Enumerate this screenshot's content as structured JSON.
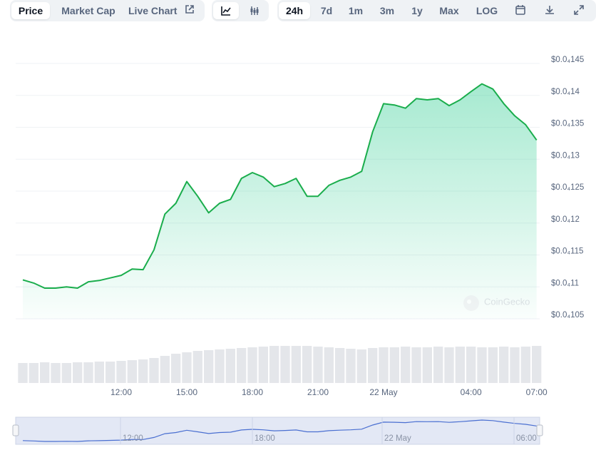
{
  "toolbar": {
    "tabs": [
      "Price",
      "Market Cap",
      "Live Chart"
    ],
    "ranges": [
      "24h",
      "7d",
      "1m",
      "3m",
      "1y",
      "Max",
      "LOG"
    ]
  },
  "chart_data": {
    "type": "line",
    "categories": [
      null,
      null,
      null,
      null,
      null,
      null,
      null,
      null,
      null,
      "12:00",
      null,
      null,
      null,
      null,
      null,
      "15:00",
      null,
      null,
      null,
      null,
      null,
      "18:00",
      null,
      null,
      null,
      null,
      null,
      "21:00",
      null,
      null,
      null,
      null,
      null,
      "22 May",
      null,
      null,
      null,
      null,
      null,
      null,
      null,
      "04:00",
      null,
      null,
      null,
      null,
      null,
      "07:00"
    ],
    "values": [
      1.111e-05,
      1.106e-05,
      1.098e-05,
      1.098e-05,
      1.1e-05,
      1.098e-05,
      1.108e-05,
      1.11e-05,
      1.114e-05,
      1.118e-05,
      1.128e-05,
      1.127e-05,
      1.158e-05,
      1.214e-05,
      1.231e-05,
      1.265e-05,
      1.242e-05,
      1.216e-05,
      1.231e-05,
      1.237e-05,
      1.27e-05,
      1.279e-05,
      1.272e-05,
      1.257e-05,
      1.262e-05,
      1.27e-05,
      1.242e-05,
      1.242e-05,
      1.259e-05,
      1.267e-05,
      1.272e-05,
      1.281e-05,
      1.343e-05,
      1.387e-05,
      1.385e-05,
      1.38e-05,
      1.395e-05,
      1.393e-05,
      1.395e-05,
      1.384e-05,
      1.393e-05,
      1.406e-05,
      1.418e-05,
      1.41e-05,
      1.387e-05,
      1.368e-05,
      1.354e-05,
      1.33e-05
    ],
    "color": "#1aad4c",
    "volume": {
      "values": [
        28,
        28,
        29,
        28,
        28,
        29,
        29,
        30,
        30,
        31,
        32,
        33,
        35,
        38,
        41,
        43,
        45,
        46,
        47,
        48,
        49,
        50,
        51,
        52,
        52,
        52,
        52,
        51,
        50,
        49,
        48,
        47,
        49,
        50,
        50,
        51,
        50,
        50,
        51,
        50,
        51,
        51,
        50,
        50,
        51,
        50,
        51,
        52
      ],
      "color": "#e4e6ea"
    },
    "ylim": [
      1.05e-05,
      1.45e-05
    ],
    "yticks": [
      {
        "value": 1.05e-05,
        "label": "$0.0₄105"
      },
      {
        "value": 1.1e-05,
        "label": "$0.0₄11"
      },
      {
        "value": 1.15e-05,
        "label": "$0.0₄115"
      },
      {
        "value": 1.2e-05,
        "label": "$0.0₄12"
      },
      {
        "value": 1.25e-05,
        "label": "$0.0₄125"
      },
      {
        "value": 1.3e-05,
        "label": "$0.0₄13"
      },
      {
        "value": 1.35e-05,
        "label": "$0.0₄135"
      },
      {
        "value": 1.4e-05,
        "label": "$0.0₄14"
      },
      {
        "value": 1.45e-05,
        "label": "$0.0₄145"
      }
    ],
    "grid": true,
    "watermark": "CoinGecko",
    "navigator": {
      "labels": [
        "12:00",
        "18:00",
        "22 May",
        "06:00"
      ]
    }
  }
}
